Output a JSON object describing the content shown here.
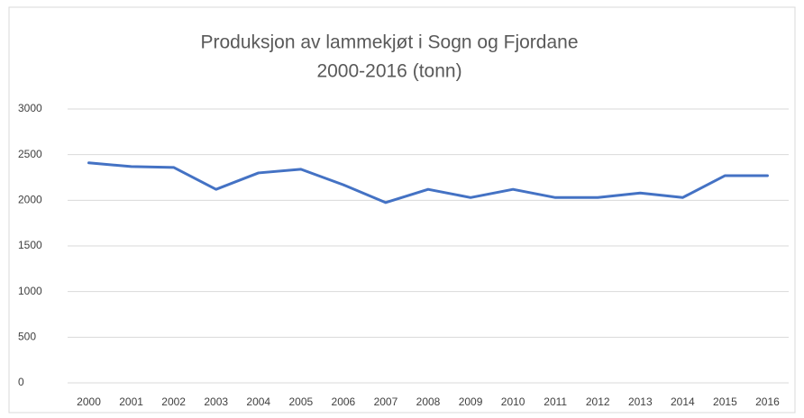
{
  "chart_data": {
    "type": "line",
    "title": [
      "Produksjon av lammekjøt i Sogn og Fjordane",
      "2000-2016 (tonn)"
    ],
    "categories": [
      "2000",
      "2001",
      "2002",
      "2003",
      "2004",
      "2005",
      "2006",
      "2007",
      "2008",
      "2009",
      "2010",
      "2011",
      "2012",
      "2013",
      "2014",
      "2015",
      "2016"
    ],
    "values": [
      2410,
      2370,
      2360,
      2120,
      2300,
      2340,
      2170,
      1975,
      2120,
      2030,
      2120,
      2030,
      2030,
      2080,
      2030,
      2270,
      2270
    ],
    "color": "#4472c4",
    "ylim": [
      0,
      3000
    ],
    "yticks": [
      0,
      500,
      1000,
      1500,
      2000,
      2500,
      3000
    ],
    "grid": true
  }
}
